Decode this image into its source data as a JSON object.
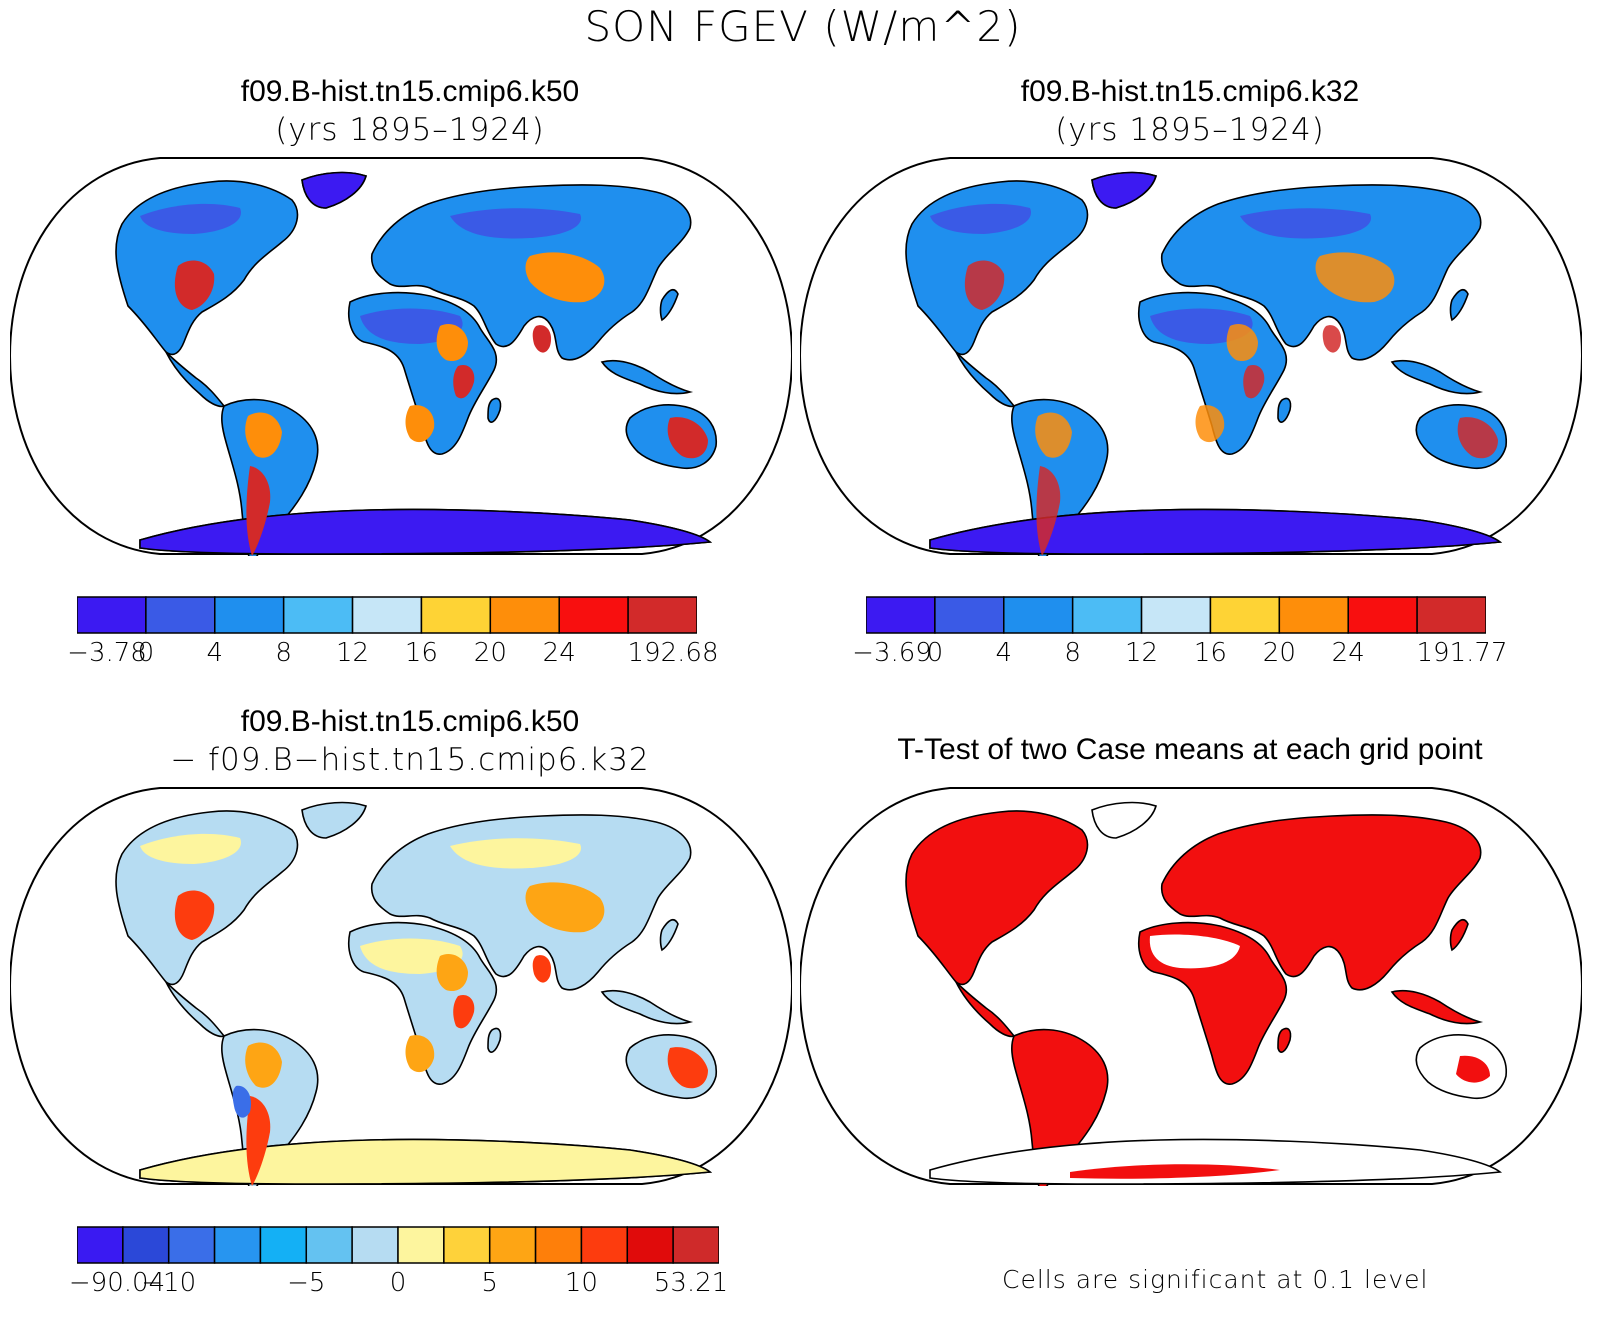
{
  "figure_title": "SON FGEV (W/m^2)",
  "panels": {
    "top_left": {
      "title_line1": "f09.B-hist.tn15.cmip6.k50",
      "title_line2": "(yrs 1895–1924)",
      "colorbar": {
        "colors": [
          "#3c1af2",
          "#3a5ae6",
          "#1f8fee",
          "#4cbcf5",
          "#c6e6f7",
          "#fed335",
          "#fe8e0a",
          "#f80f0f",
          "#d22a2a"
        ],
        "labels": [
          "−3.78",
          "0",
          "4",
          "8",
          "12",
          "16",
          "20",
          "24",
          "192.68"
        ]
      }
    },
    "top_right": {
      "title_line1": "f09.B-hist.tn15.cmip6.k32",
      "title_line2": "(yrs 1895–1924)",
      "colorbar": {
        "colors": [
          "#3c1af2",
          "#3a5ae6",
          "#1f8fee",
          "#4cbcf5",
          "#c6e6f7",
          "#fed335",
          "#fe8e0a",
          "#f80f0f",
          "#d22a2a"
        ],
        "labels": [
          "−3.69",
          "0",
          "4",
          "8",
          "12",
          "16",
          "20",
          "24",
          "191.77"
        ]
      }
    },
    "bottom_left": {
      "title_line1": "f09.B-hist.tn15.cmip6.k50",
      "title_line2": "− f09.B−hist.tn15.cmip6.k32",
      "colorbar": {
        "colors": [
          "#3a1af2",
          "#2b48d8",
          "#3a6ee8",
          "#2795f0",
          "#14b0f5",
          "#64c2f1",
          "#b6dcf2",
          "#fdf59e",
          "#fed23a",
          "#fea514",
          "#fe7f0a",
          "#fd3c0e",
          "#e00b0b",
          "#cf2a2a"
        ],
        "labels": [
          "−90.04",
          "−10",
          "−5",
          "0",
          "5",
          "10",
          "53.21"
        ]
      }
    },
    "bottom_right": {
      "title": "T-Test of two Case means at each grid point",
      "note": "Cells are significant at 0.1 level",
      "significant_color": "#f20f0f"
    }
  }
}
